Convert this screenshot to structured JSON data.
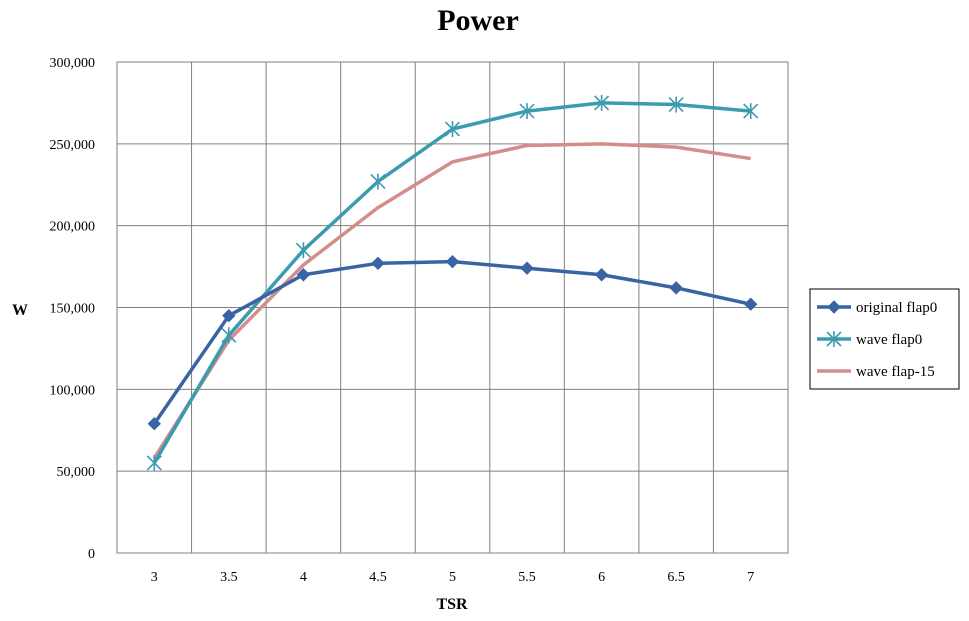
{
  "chart_data": {
    "type": "line",
    "title": "Power",
    "xlabel": "TSR",
    "ylabel": "W",
    "categories": [
      "3",
      "3.5",
      "4",
      "4.5",
      "5",
      "5.5",
      "6",
      "6.5",
      "7"
    ],
    "y_ticks": [
      "0",
      "50,000",
      "100,000",
      "150,000",
      "200,000",
      "250,000",
      "300,000"
    ],
    "ylim": [
      0,
      300000
    ],
    "grid": true,
    "legend_position": "right",
    "series": [
      {
        "name": "original flap0",
        "color": "#3A63A6",
        "marker": "diamond",
        "values": [
          79000,
          145000,
          170000,
          177000,
          178000,
          174000,
          170000,
          162000,
          152000
        ]
      },
      {
        "name": "wave flap0",
        "color": "#3B9BAF",
        "marker": "asterisk",
        "values": [
          55000,
          133000,
          185000,
          227000,
          259000,
          270000,
          275000,
          274000,
          270000
        ]
      },
      {
        "name": "wave flap-15",
        "color": "#D48D8B",
        "marker": "none",
        "values": [
          58000,
          130000,
          176000,
          211000,
          239000,
          249000,
          250000,
          248000,
          241000
        ]
      }
    ]
  }
}
